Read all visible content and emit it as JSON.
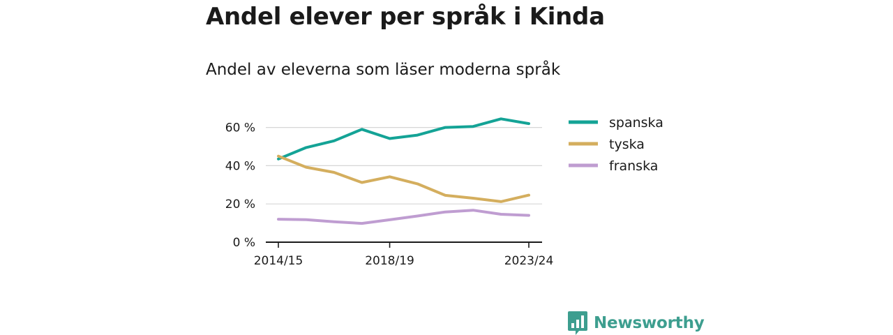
{
  "title": "Andel elever per språk i Kinda",
  "subtitle": "Andel av eleverna som läser moderna språk",
  "brand": {
    "name": "Newsworthy",
    "icon": "bar-chart-speech-bubble-icon",
    "color": "#3d9e8f"
  },
  "chart_data": {
    "type": "line",
    "x": [
      "2014/15",
      "2015/16",
      "2016/17",
      "2017/18",
      "2018/19",
      "2019/20",
      "2020/21",
      "2021/22",
      "2022/23",
      "2023/24"
    ],
    "x_tick_labels": [
      "2014/15",
      "2018/19",
      "2023/24"
    ],
    "y_tick_labels": [
      "0 %",
      "20 %",
      "40 %",
      "60 %"
    ],
    "y_ticks": [
      0,
      20,
      40,
      60
    ],
    "ylim": [
      0,
      70
    ],
    "grid": true,
    "legend_position": "right",
    "series": [
      {
        "name": "spanska",
        "color": "#14a396",
        "values": [
          43.5,
          49.5,
          53,
          59,
          54.2,
          56,
          60,
          60.5,
          64.5,
          62
        ]
      },
      {
        "name": "tyska",
        "color": "#d4ae5e",
        "values": [
          45,
          39.2,
          36.5,
          31.2,
          34.2,
          30.5,
          24.5,
          23,
          21.2,
          24.6
        ]
      },
      {
        "name": "franska",
        "color": "#bf9dd1",
        "values": [
          12,
          11.8,
          10.7,
          9.8,
          11.7,
          13.7,
          15.8,
          16.7,
          14.6,
          14
        ]
      }
    ]
  }
}
